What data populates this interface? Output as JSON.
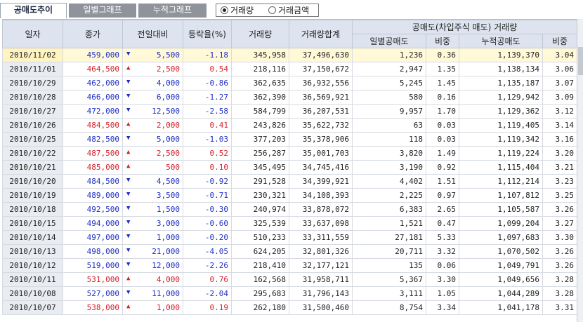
{
  "tabs": [
    "공매도추이",
    "일별그래프",
    "누적그래프"
  ],
  "radio": [
    {
      "label": "거래량",
      "checked": true
    },
    {
      "label": "거래금액",
      "checked": false
    }
  ],
  "headers": {
    "date": "일자",
    "close": "종가",
    "change": "전일대비",
    "rate": "등락율(%)",
    "volume": "거래량",
    "cumvol": "거래량합계",
    "group": "공매도(차입주식 매도) 거래량",
    "daily": "일별공매도",
    "ratio1": "비중",
    "cum": "누적공매도",
    "ratio2": "비중"
  },
  "rows": [
    {
      "date": "2010/11/02",
      "close": "459,000",
      "dir": "down",
      "change": "5,500",
      "rate": "-1.18",
      "volume": "345,958",
      "cumvol": "37,496,630",
      "daily": "1,236",
      "ratio1": "0.36",
      "cum": "1,139,370",
      "ratio2": "3.04"
    },
    {
      "date": "2010/11/01",
      "close": "464,500",
      "dir": "up",
      "change": "2,500",
      "rate": "0.54",
      "volume": "218,116",
      "cumvol": "37,150,672",
      "daily": "2,947",
      "ratio1": "1.35",
      "cum": "1,138,134",
      "ratio2": "3.06"
    },
    {
      "date": "2010/10/29",
      "close": "462,000",
      "dir": "down",
      "change": "4,000",
      "rate": "-0.86",
      "volume": "362,635",
      "cumvol": "36,932,556",
      "daily": "5,245",
      "ratio1": "1.45",
      "cum": "1,135,187",
      "ratio2": "3.07"
    },
    {
      "date": "2010/10/28",
      "close": "466,000",
      "dir": "down",
      "change": "6,000",
      "rate": "-1.27",
      "volume": "362,390",
      "cumvol": "36,569,921",
      "daily": "580",
      "ratio1": "0.16",
      "cum": "1,129,942",
      "ratio2": "3.09"
    },
    {
      "date": "2010/10/27",
      "close": "472,000",
      "dir": "down",
      "change": "12,500",
      "rate": "-2.58",
      "volume": "584,799",
      "cumvol": "36,207,531",
      "daily": "9,957",
      "ratio1": "1.70",
      "cum": "1,129,362",
      "ratio2": "3.12"
    },
    {
      "date": "2010/10/26",
      "close": "484,500",
      "dir": "up",
      "change": "2,000",
      "rate": "0.41",
      "volume": "243,826",
      "cumvol": "35,622,732",
      "daily": "63",
      "ratio1": "0.03",
      "cum": "1,119,405",
      "ratio2": "3.14"
    },
    {
      "date": "2010/10/25",
      "close": "482,500",
      "dir": "down",
      "change": "5,000",
      "rate": "-1.03",
      "volume": "377,203",
      "cumvol": "35,378,906",
      "daily": "118",
      "ratio1": "0.03",
      "cum": "1,119,342",
      "ratio2": "3.16"
    },
    {
      "date": "2010/10/22",
      "close": "487,500",
      "dir": "up",
      "change": "2,500",
      "rate": "0.52",
      "volume": "256,287",
      "cumvol": "35,001,703",
      "daily": "3,820",
      "ratio1": "1.49",
      "cum": "1,119,224",
      "ratio2": "3.20"
    },
    {
      "date": "2010/10/21",
      "close": "485,000",
      "dir": "up",
      "change": "500",
      "rate": "0.10",
      "volume": "345,495",
      "cumvol": "34,745,416",
      "daily": "3,190",
      "ratio1": "0.92",
      "cum": "1,115,404",
      "ratio2": "3.21"
    },
    {
      "date": "2010/10/20",
      "close": "484,500",
      "dir": "down",
      "change": "4,500",
      "rate": "-0.92",
      "volume": "291,528",
      "cumvol": "34,399,921",
      "daily": "4,402",
      "ratio1": "1.51",
      "cum": "1,112,214",
      "ratio2": "3.23"
    },
    {
      "date": "2010/10/19",
      "close": "489,000",
      "dir": "down",
      "change": "3,500",
      "rate": "-0.71",
      "volume": "230,321",
      "cumvol": "34,108,393",
      "daily": "2,225",
      "ratio1": "0.97",
      "cum": "1,107,812",
      "ratio2": "3.25"
    },
    {
      "date": "2010/10/18",
      "close": "492,500",
      "dir": "down",
      "change": "1,500",
      "rate": "-0.30",
      "volume": "240,974",
      "cumvol": "33,878,072",
      "daily": "6,383",
      "ratio1": "2.65",
      "cum": "1,105,587",
      "ratio2": "3.26"
    },
    {
      "date": "2010/10/15",
      "close": "494,000",
      "dir": "down",
      "change": "3,000",
      "rate": "-0.60",
      "volume": "325,539",
      "cumvol": "33,637,098",
      "daily": "1,521",
      "ratio1": "0.47",
      "cum": "1,099,204",
      "ratio2": "3.27"
    },
    {
      "date": "2010/10/14",
      "close": "497,000",
      "dir": "down",
      "change": "1,000",
      "rate": "-0.20",
      "volume": "510,233",
      "cumvol": "33,311,559",
      "daily": "27,181",
      "ratio1": "5.33",
      "cum": "1,097,683",
      "ratio2": "3.30"
    },
    {
      "date": "2010/10/13",
      "close": "498,000",
      "dir": "down",
      "change": "21,000",
      "rate": "-4.05",
      "volume": "624,205",
      "cumvol": "32,801,326",
      "daily": "20,711",
      "ratio1": "3.32",
      "cum": "1,070,502",
      "ratio2": "3.26"
    },
    {
      "date": "2010/10/12",
      "close": "519,000",
      "dir": "down",
      "change": "12,000",
      "rate": "-2.26",
      "volume": "218,410",
      "cumvol": "32,177,121",
      "daily": "135",
      "ratio1": "0.06",
      "cum": "1,049,791",
      "ratio2": "3.26"
    },
    {
      "date": "2010/10/11",
      "close": "531,000",
      "dir": "up",
      "change": "4,000",
      "rate": "0.76",
      "volume": "162,568",
      "cumvol": "31,958,711",
      "daily": "5,367",
      "ratio1": "3.30",
      "cum": "1,049,656",
      "ratio2": "3.28"
    },
    {
      "date": "2010/10/08",
      "close": "527,000",
      "dir": "down",
      "change": "11,000",
      "rate": "-2.04",
      "volume": "295,683",
      "cumvol": "31,796,143",
      "daily": "3,111",
      "ratio1": "1.05",
      "cum": "1,044,289",
      "ratio2": "3.28"
    },
    {
      "date": "2010/10/07",
      "close": "538,000",
      "dir": "up",
      "change": "1,000",
      "rate": "0.19",
      "volume": "262,180",
      "cumvol": "31,500,460",
      "daily": "8,754",
      "ratio1": "3.34",
      "cum": "1,041,178",
      "ratio2": "3.31"
    }
  ],
  "colors": {
    "up": "#d4222a",
    "down": "#1d2fc5",
    "selected_row": "#fff9d8",
    "header_bg": "#dde4ef"
  }
}
